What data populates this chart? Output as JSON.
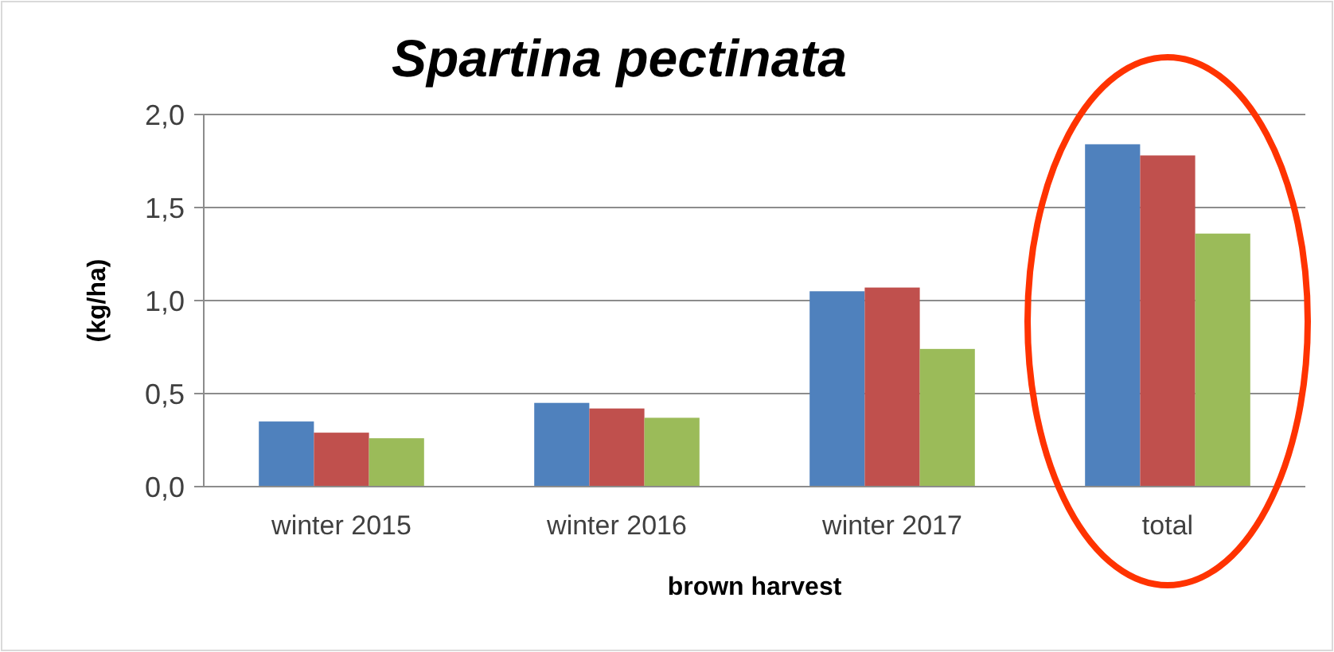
{
  "chart_data": {
    "type": "bar",
    "title": "Spartina pectinata",
    "xlabel": "brown harvest",
    "ylabel": "(kg/ha)",
    "categories": [
      "winter 2015",
      "winter 2016",
      "winter 2017",
      "total"
    ],
    "series": [
      {
        "color": "#4f81bd",
        "values": [
          0.35,
          0.45,
          1.05,
          1.84
        ]
      },
      {
        "color": "#c0504d",
        "values": [
          0.29,
          0.42,
          1.07,
          1.78
        ]
      },
      {
        "color": "#9bbb59",
        "values": [
          0.26,
          0.37,
          0.74,
          1.36
        ]
      }
    ],
    "ylim": [
      0,
      2
    ],
    "yticks": [
      {
        "value": 0,
        "label": "0,0"
      },
      {
        "value": 0.5,
        "label": "0,5"
      },
      {
        "value": 1,
        "label": "1,0"
      },
      {
        "value": 1.5,
        "label": "1,5"
      },
      {
        "value": 2,
        "label": "2,0"
      }
    ],
    "grid": "y"
  }
}
